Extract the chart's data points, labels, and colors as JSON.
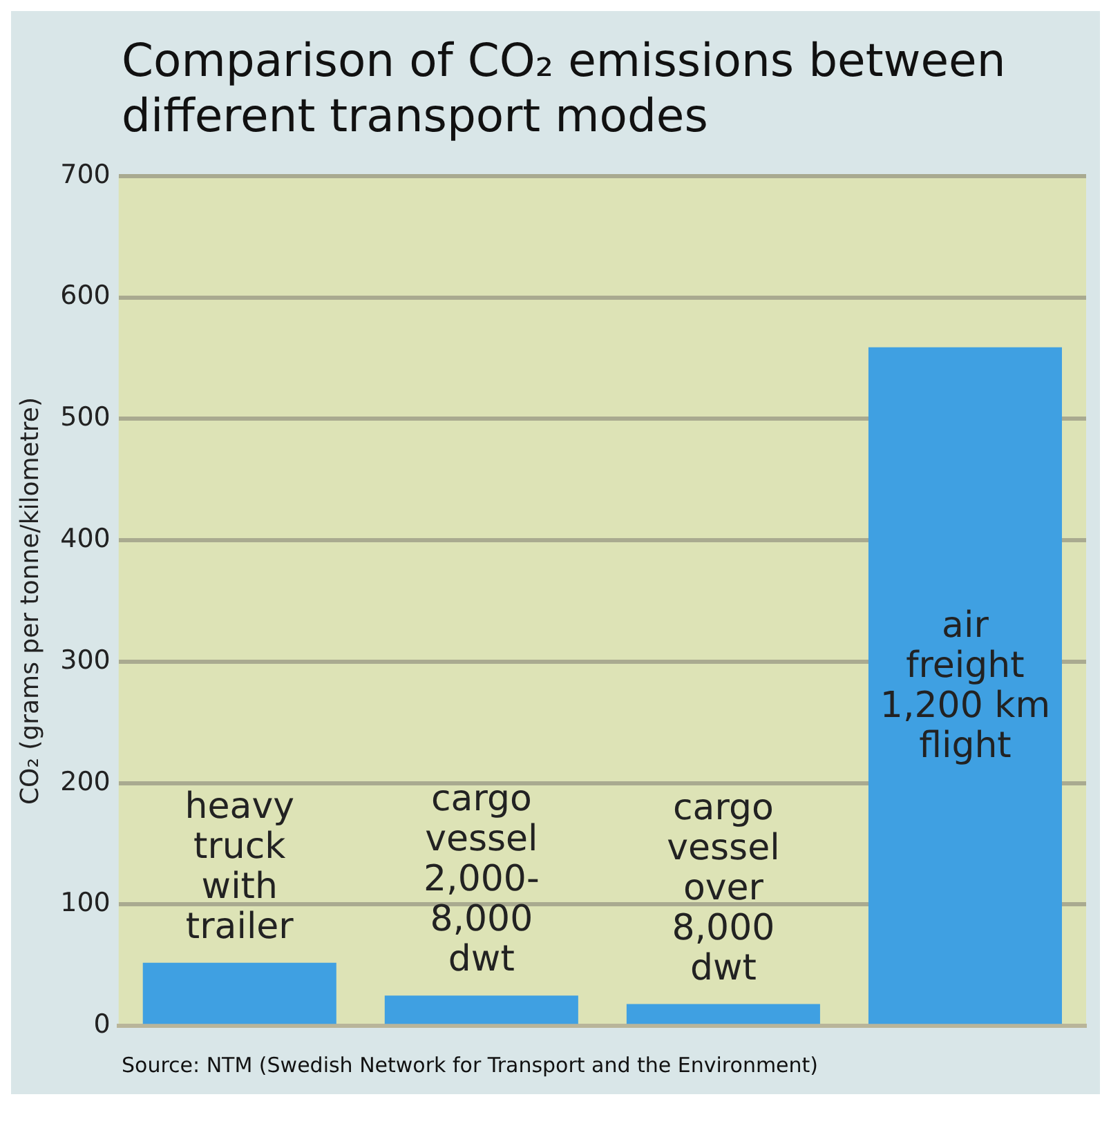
{
  "chart_data": {
    "type": "bar",
    "title": "Comparison of CO₂ emissions between different transport modes",
    "ylabel": "CO₂ (grams per tonne/kilometre)",
    "categories": [
      "heavy\ntruck\nwith\ntrailer",
      "cargo\nvessel\n2,000-\n8,000\ndwt",
      "cargo\nvessel\nover\n8,000\ndwt",
      "air\nfreight\n1,200 km\nflight"
    ],
    "values": [
      52,
      25,
      18,
      559
    ],
    "color": "#3fa0e2",
    "ylim": [
      0,
      700
    ],
    "yticks": [
      0,
      100,
      200,
      300,
      400,
      500,
      600,
      700
    ],
    "grid": "y",
    "legend": false,
    "annotations": [
      "Source: NTM (Swedish Network for Transport and the Environment)"
    ]
  }
}
